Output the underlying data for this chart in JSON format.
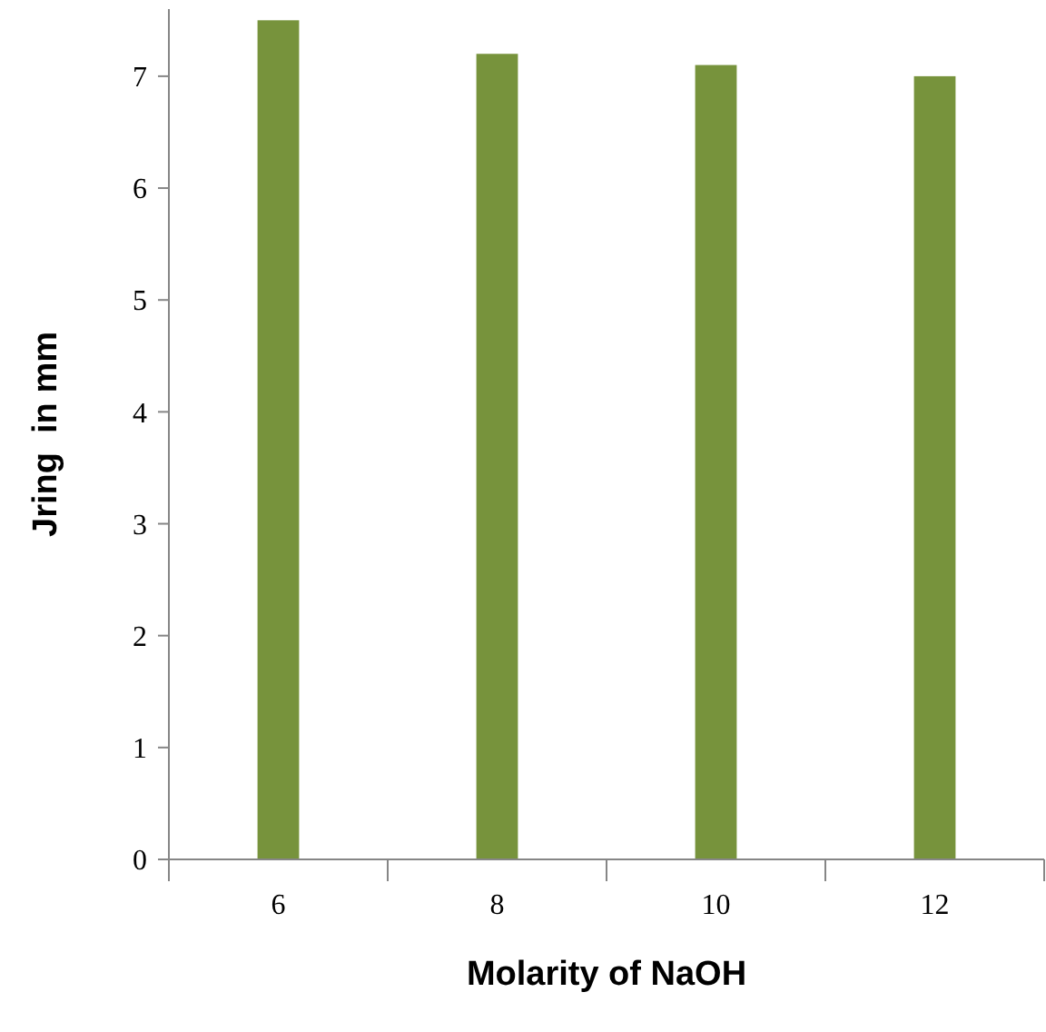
{
  "chart_data": {
    "type": "bar",
    "xlabel": "Molarity of NaOH",
    "ylabel": "Jring  in mm",
    "categories": [
      "6",
      "8",
      "10",
      "12"
    ],
    "values": [
      7.5,
      7.2,
      7.1,
      7.0
    ],
    "color": "#77933c",
    "ylim": [
      0,
      7.6
    ],
    "yticks": [
      0,
      1,
      2,
      3,
      4,
      5,
      6,
      7
    ],
    "grid": false
  }
}
